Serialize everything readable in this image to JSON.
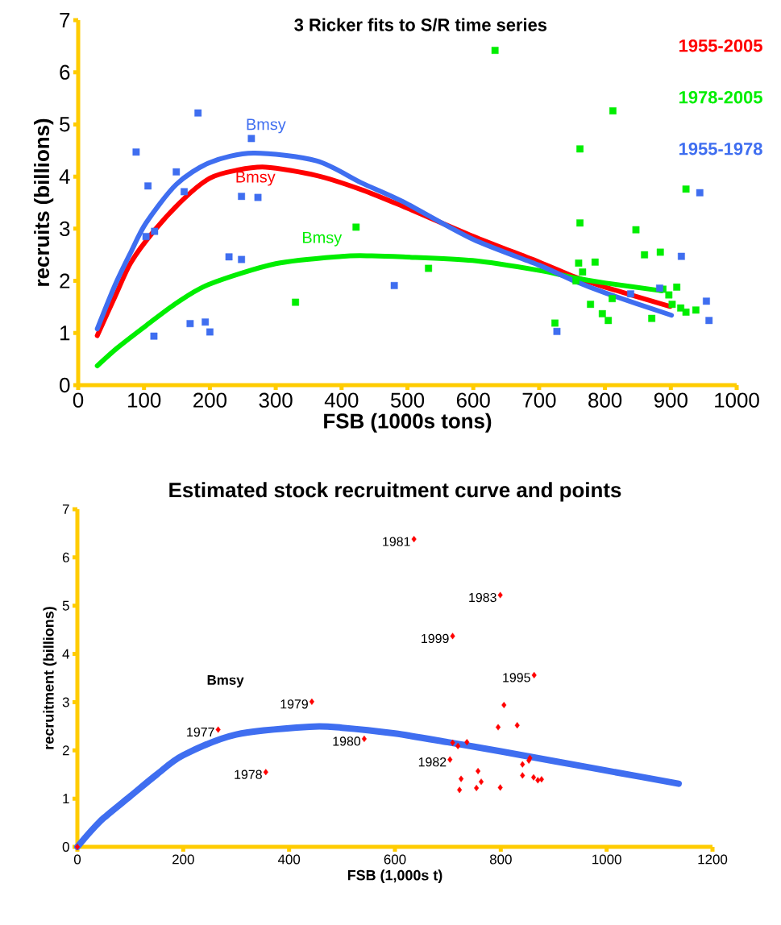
{
  "chart_data": [
    {
      "type": "scatter",
      "title": "3 Ricker fits to S/R time series",
      "xlabel": "FSB (1000s tons)",
      "ylabel": "recruits (billions)",
      "xlim": [
        0,
        1000
      ],
      "ylim": [
        0,
        7
      ],
      "xticks": [
        0,
        100,
        200,
        300,
        400,
        500,
        600,
        700,
        800,
        900,
        1000
      ],
      "yticks": [
        0,
        1,
        2,
        3,
        4,
        5,
        6,
        7
      ],
      "legend": "top right",
      "annotations": [
        "Bmsy",
        "Bmsy",
        "Bmsy"
      ],
      "series": [
        {
          "name": "1955-2005",
          "type": "line",
          "marker": "none",
          "color": "#ff0000",
          "x": [
            29,
            56,
            80,
            116,
            161,
            200,
            240,
            285,
            362,
            430,
            493,
            599,
            700,
            753,
            800,
            899
          ],
          "values": [
            0.95,
            1.7,
            2.35,
            2.97,
            3.58,
            3.97,
            4.12,
            4.18,
            4.02,
            3.75,
            3.43,
            2.86,
            2.36,
            2.08,
            1.88,
            1.51
          ]
        },
        {
          "name": "1978-2005",
          "type": "line",
          "marker": "none",
          "color": "#00ee00",
          "x": [
            29,
            60,
            104,
            150,
            200,
            300,
            400,
            446,
            493,
            599,
            700,
            753,
            800,
            886
          ],
          "values": [
            0.37,
            0.72,
            1.15,
            1.58,
            1.94,
            2.33,
            2.47,
            2.48,
            2.46,
            2.39,
            2.2,
            2.06,
            1.96,
            1.81
          ]
        },
        {
          "name": "1955-1978",
          "type": "line",
          "marker": "none",
          "color": "#3f6ef0",
          "x": [
            29,
            56,
            80,
            103,
            149,
            200,
            266,
            362,
            430,
            493,
            599,
            700,
            753,
            800,
            901
          ],
          "values": [
            1.08,
            1.92,
            2.55,
            3.11,
            3.85,
            4.27,
            4.45,
            4.3,
            3.88,
            3.52,
            2.8,
            2.3,
            2.0,
            1.77,
            1.34
          ]
        },
        {
          "marker": "square",
          "color": "#00ee00",
          "x": [
            422,
            330,
            633,
            812,
            762,
            923,
            762,
            847,
            860,
            884,
            532,
            760,
            785,
            766,
            756,
            909,
            897,
            888,
            811,
            902,
            915,
            923,
            938,
            778,
            796,
            805,
            871,
            724
          ],
          "values": [
            3.03,
            1.59,
            6.42,
            5.26,
            4.53,
            3.76,
            3.11,
            2.98,
            2.5,
            2.55,
            2.24,
            2.34,
            2.36,
            2.17,
            2.0,
            1.88,
            1.73,
            1.84,
            1.66,
            1.55,
            1.48,
            1.4,
            1.44,
            1.55,
            1.37,
            1.24,
            1.28,
            1.19
          ]
        },
        {
          "marker": "square",
          "color": "#3f6ef0",
          "x": [
            88,
            182,
            149,
            106,
            161,
            103,
            116,
            263,
            248,
            273,
            229,
            248,
            115,
            170,
            193,
            200,
            480,
            727,
            839,
            883,
            916,
            944,
            954,
            958
          ],
          "values": [
            4.47,
            5.22,
            4.09,
            3.82,
            3.71,
            2.85,
            2.95,
            4.73,
            3.62,
            3.6,
            2.46,
            2.41,
            0.94,
            1.18,
            1.21,
            1.02,
            1.91,
            1.03,
            1.75,
            1.86,
            2.47,
            3.69,
            1.61,
            1.24
          ]
        }
      ]
    },
    {
      "type": "scatter",
      "title": "Estimated stock recruitment curve and points",
      "xlabel": "FSB (1,000s t)",
      "ylabel": "recruitment (billions)",
      "xlim": [
        0,
        1200
      ],
      "ylim": [
        0,
        7
      ],
      "xticks": [
        0,
        200,
        400,
        600,
        800,
        1000,
        1200
      ],
      "yticks": [
        0,
        1,
        2,
        3,
        4,
        5,
        6,
        7
      ],
      "annotations": [
        "Bmsy",
        {
          "text": "1977",
          "x": 266,
          "y": 2.43
        },
        {
          "text": "1978",
          "x": 356,
          "y": 1.55
        },
        {
          "text": "1979",
          "x": 443,
          "y": 3.01
        },
        {
          "text": "1980",
          "x": 542,
          "y": 2.24
        },
        {
          "text": "1981",
          "x": 636,
          "y": 6.38
        },
        {
          "text": "1982",
          "x": 704,
          "y": 1.81
        },
        {
          "text": "1983",
          "x": 799,
          "y": 5.22
        },
        {
          "text": "1999",
          "x": 709,
          "y": 4.37
        },
        {
          "text": "1995",
          "x": 863,
          "y": 3.56
        }
      ],
      "series": [
        {
          "type": "line",
          "marker": "none",
          "color": "#3f6ef0",
          "x": [
            0,
            25,
            50,
            100,
            150,
            200,
            300,
            439,
            500,
            600,
            700,
            800,
            900,
            1000,
            1136
          ],
          "values": [
            0,
            0.32,
            0.6,
            1.05,
            1.5,
            1.9,
            2.33,
            2.49,
            2.47,
            2.35,
            2.17,
            1.98,
            1.78,
            1.58,
            1.31
          ]
        },
        {
          "marker": "diamond",
          "color": "#ff0000",
          "x": [
            0,
            266,
            356,
            443,
            542,
            636,
            704,
            799,
            709,
            863,
            806,
            831,
            795,
            709,
            719,
            736,
            855,
            853,
            841,
            757,
            725,
            763,
            841,
            862,
            870,
            877,
            722,
            754,
            799
          ],
          "values": [
            0,
            2.43,
            1.55,
            3.01,
            2.24,
            6.38,
            1.81,
            5.22,
            4.37,
            3.56,
            2.94,
            2.52,
            2.48,
            2.16,
            2.09,
            2.17,
            1.84,
            1.79,
            1.71,
            1.57,
            1.41,
            1.35,
            1.48,
            1.44,
            1.38,
            1.4,
            1.18,
            1.22,
            1.23
          ]
        }
      ]
    }
  ]
}
